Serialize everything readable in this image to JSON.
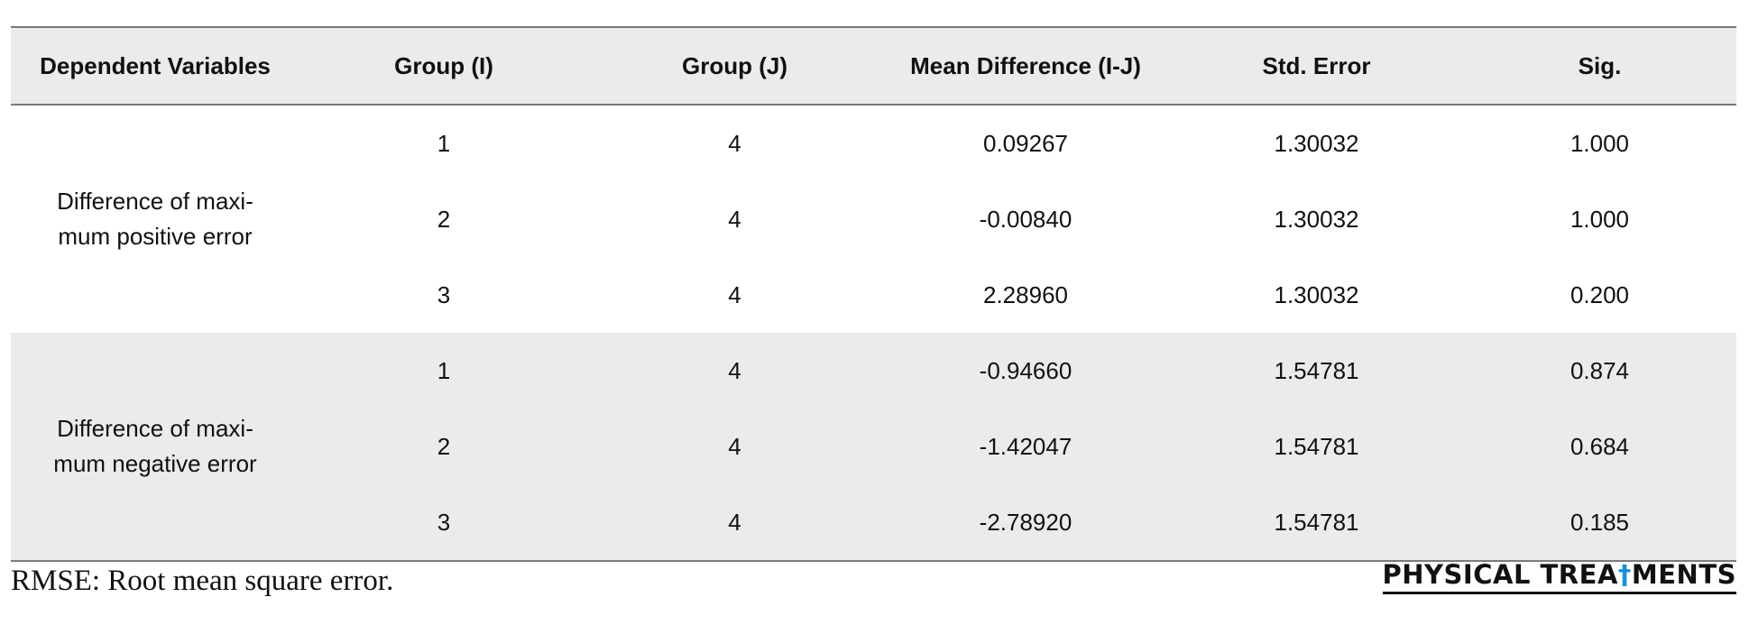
{
  "table": {
    "headers": [
      "Dependent Variables",
      "Group (I)",
      "Group (J)",
      "Mean Difference (I-J)",
      "Std. Error",
      "Sig."
    ],
    "groups": [
      {
        "dependent_variable": "Difference of maxi- mum positive error",
        "rows": [
          {
            "group_i": "1",
            "group_j": "4",
            "mean_diff": "0.09267",
            "std_error": "1.30032",
            "sig": "1.000"
          },
          {
            "group_i": "2",
            "group_j": "4",
            "mean_diff": "-0.00840",
            "std_error": "1.30032",
            "sig": "1.000"
          },
          {
            "group_i": "3",
            "group_j": "4",
            "mean_diff": "2.28960",
            "std_error": "1.30032",
            "sig": "0.200"
          }
        ]
      },
      {
        "dependent_variable": "Difference of maxi- mum negative error",
        "rows": [
          {
            "group_i": "1",
            "group_j": "4",
            "mean_diff": "-0.94660",
            "std_error": "1.54781",
            "sig": "0.874"
          },
          {
            "group_i": "2",
            "group_j": "4",
            "mean_diff": "-1.42047",
            "std_error": "1.54781",
            "sig": "0.684"
          },
          {
            "group_i": "3",
            "group_j": "4",
            "mean_diff": "-2.78920",
            "std_error": "1.54781",
            "sig": "0.185"
          }
        ]
      }
    ]
  },
  "footnote": "RMSE: Root mean square error.",
  "logo": {
    "part1": "PHYSICAL TREA",
    "accent_glyph": "†",
    "part2": "MENTS",
    "accent_color": "#1a8fd6"
  }
}
